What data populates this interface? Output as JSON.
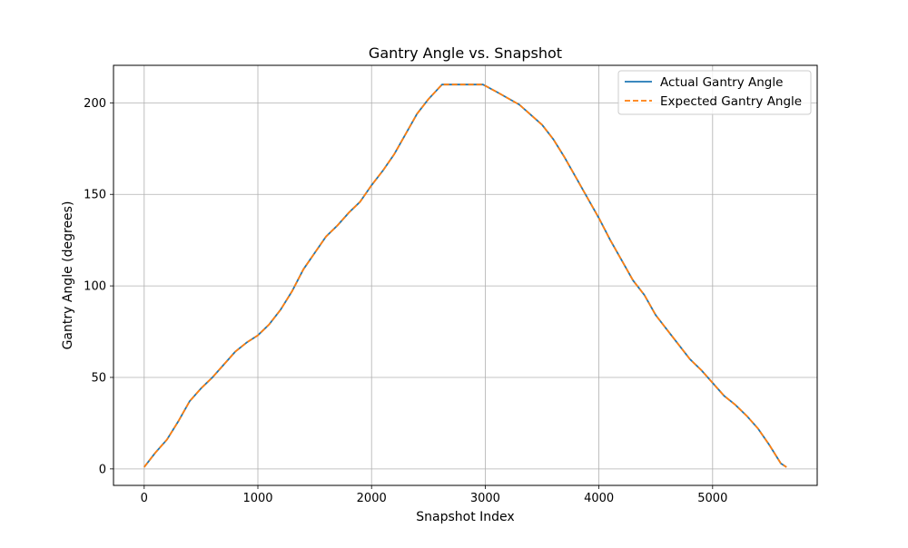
{
  "chart_data": {
    "type": "line",
    "title": "Gantry Angle vs. Snapshot",
    "xlabel": "Snapshot Index",
    "ylabel": "Gantry Angle (degrees)",
    "xlim": [
      -270,
      5920
    ],
    "ylim": [
      -9,
      220.5
    ],
    "xticks": [
      0,
      1000,
      2000,
      3000,
      4000,
      5000
    ],
    "yticks": [
      0,
      50,
      100,
      150,
      200
    ],
    "grid": true,
    "legend_position": "top-right",
    "series": [
      {
        "name": "Actual Gantry Angle",
        "color": "#1f77b4",
        "style": "solid",
        "x": [
          0,
          100,
          200,
          300,
          400,
          500,
          600,
          700,
          800,
          900,
          1000,
          1100,
          1200,
          1300,
          1400,
          1500,
          1600,
          1700,
          1800,
          1900,
          2000,
          2100,
          2200,
          2300,
          2400,
          2500,
          2620,
          2980,
          3100,
          3300,
          3500,
          3600,
          3700,
          3800,
          3900,
          4000,
          4100,
          4200,
          4300,
          4400,
          4500,
          4600,
          4700,
          4800,
          4900,
          5000,
          5100,
          5200,
          5300,
          5400,
          5500,
          5600,
          5650
        ],
        "y": [
          1,
          9,
          16,
          26,
          37,
          44,
          50,
          57,
          64,
          69,
          73,
          79,
          87,
          97,
          109,
          118,
          127,
          133,
          140,
          146,
          155,
          163,
          172,
          183,
          194,
          202,
          210,
          210,
          206,
          199,
          188,
          180,
          170,
          159,
          148,
          137,
          125,
          114,
          103,
          95,
          84,
          76,
          68,
          60,
          54,
          47,
          40,
          35,
          29,
          22,
          13,
          3,
          1
        ]
      },
      {
        "name": "Expected Gantry Angle",
        "color": "#ff7f0e",
        "style": "dashed",
        "x": [
          0,
          100,
          200,
          300,
          400,
          500,
          600,
          700,
          800,
          900,
          1000,
          1100,
          1200,
          1300,
          1400,
          1500,
          1600,
          1700,
          1800,
          1900,
          2000,
          2100,
          2200,
          2300,
          2400,
          2500,
          2620,
          2980,
          3100,
          3300,
          3500,
          3600,
          3700,
          3800,
          3900,
          4000,
          4100,
          4200,
          4300,
          4400,
          4500,
          4600,
          4700,
          4800,
          4900,
          5000,
          5100,
          5200,
          5300,
          5400,
          5500,
          5600,
          5650
        ],
        "y": [
          1,
          9,
          16,
          26,
          37,
          44,
          50,
          57,
          64,
          69,
          73,
          79,
          87,
          97,
          109,
          118,
          127,
          133,
          140,
          146,
          155,
          163,
          172,
          183,
          194,
          202,
          210,
          210,
          206,
          199,
          188,
          180,
          170,
          159,
          148,
          137,
          125,
          114,
          103,
          95,
          84,
          76,
          68,
          60,
          54,
          47,
          40,
          35,
          29,
          22,
          13,
          3,
          1
        ]
      }
    ]
  }
}
